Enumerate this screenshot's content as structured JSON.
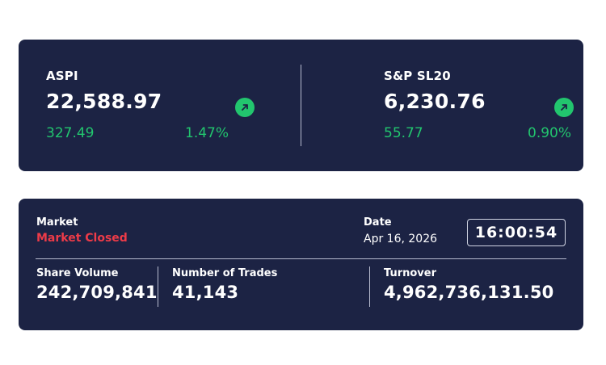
{
  "indices": [
    {
      "name": "ASPI",
      "value": "22,588.97",
      "change": "327.49",
      "percent": "1.47%",
      "trend_icon": "arrow-up-right-icon"
    },
    {
      "name": "S&P SL20",
      "value": "6,230.76",
      "change": "55.77",
      "percent": "0.90%",
      "trend_icon": "arrow-up-right-icon"
    }
  ],
  "market": {
    "label": "Market",
    "status": "Market Closed",
    "date_label": "Date",
    "date": "Apr 16, 2026",
    "time": "16:00:54"
  },
  "stats": {
    "share_volume_label": "Share Volume",
    "share_volume": "242,709,841",
    "trades_label": "Number of Trades",
    "trades": "41,143",
    "turnover_label": "Turnover",
    "turnover": "4,962,736,131.50"
  },
  "colors": {
    "card_bg": "#1c2344",
    "positive": "#22c56e",
    "closed": "#ee3b48",
    "text": "#ffffff"
  }
}
